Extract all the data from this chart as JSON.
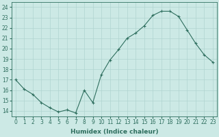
{
  "x": [
    0,
    1,
    2,
    3,
    4,
    5,
    6,
    7,
    8,
    9,
    10,
    11,
    12,
    13,
    14,
    15,
    16,
    17,
    18,
    19,
    20,
    21,
    22,
    23
  ],
  "y": [
    17.0,
    16.1,
    15.6,
    14.8,
    14.3,
    13.9,
    14.1,
    13.8,
    16.0,
    14.8,
    17.5,
    18.9,
    19.9,
    21.0,
    21.5,
    22.2,
    23.2,
    23.6,
    23.6,
    23.1,
    21.8,
    20.5,
    19.4,
    18.7
  ],
  "line_color": "#2e6e5e",
  "marker": "+",
  "marker_size": 3,
  "marker_linewidth": 0.8,
  "bg_color": "#cce9e5",
  "grid_color": "#b0d4d0",
  "xlabel": "Humidex (Indice chaleur)",
  "xlim": [
    -0.5,
    23.5
  ],
  "ylim": [
    13.5,
    24.5
  ],
  "yticks": [
    14,
    15,
    16,
    17,
    18,
    19,
    20,
    21,
    22,
    23,
    24
  ],
  "xticks": [
    0,
    1,
    2,
    3,
    4,
    5,
    6,
    7,
    8,
    9,
    10,
    11,
    12,
    13,
    14,
    15,
    16,
    17,
    18,
    19,
    20,
    21,
    22,
    23
  ],
  "label_fontsize": 6.5,
  "tick_fontsize": 5.5,
  "linewidth": 0.8
}
